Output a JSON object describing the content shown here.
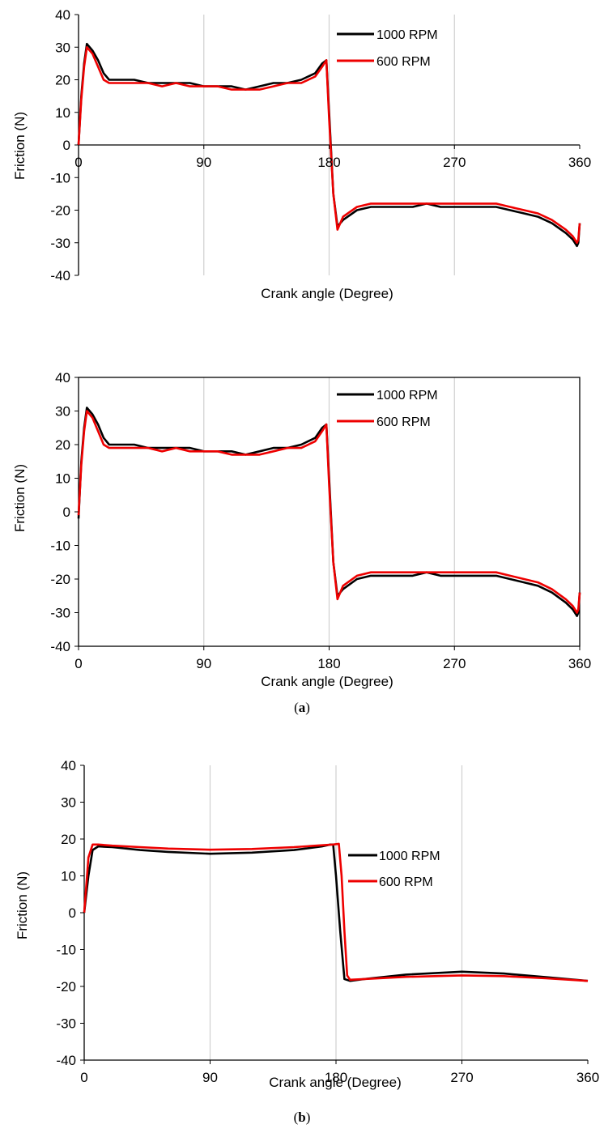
{
  "colors": {
    "series_1000": "#000000",
    "series_600": "#ee0000",
    "grid": "#d0d0d0"
  },
  "captions": {
    "a": "a",
    "b": "b"
  },
  "chart_data": [
    {
      "type": "line",
      "xlabel": "Crank angle (Degree)",
      "ylabel": "Friction (N)",
      "xlim": [
        0,
        360
      ],
      "ylim": [
        -40,
        40
      ],
      "xticks": [
        "0",
        "90",
        "180",
        "270",
        "360"
      ],
      "yticks": [
        "40",
        "30",
        "20",
        "10",
        "0",
        "-10",
        "-20",
        "-30",
        "-40"
      ],
      "x_axis_at": "y=0",
      "grid": "vertical",
      "legend": "top-right",
      "series": [
        {
          "name": "1000 RPM",
          "x": [
            0,
            2,
            4,
            6,
            10,
            14,
            18,
            22,
            30,
            40,
            50,
            60,
            70,
            80,
            90,
            100,
            110,
            120,
            130,
            140,
            150,
            160,
            170,
            175,
            178,
            180,
            183,
            186,
            190,
            200,
            210,
            220,
            230,
            240,
            250,
            260,
            270,
            280,
            290,
            300,
            310,
            320,
            330,
            340,
            350,
            355,
            358,
            359,
            360
          ],
          "y": [
            0,
            15,
            25,
            31,
            29,
            26,
            22,
            20,
            20,
            20,
            19,
            19,
            19,
            19,
            18,
            18,
            18,
            17,
            18,
            19,
            19,
            20,
            22,
            25,
            26,
            10,
            -15,
            -25,
            -23,
            -20,
            -19,
            -19,
            -19,
            -19,
            -18,
            -19,
            -19,
            -19,
            -19,
            -19,
            -20,
            -21,
            -22,
            -24,
            -27,
            -29,
            -31,
            -30,
            -24
          ]
        },
        {
          "name": "600 RPM",
          "x": [
            0,
            2,
            4,
            6,
            10,
            14,
            18,
            22,
            30,
            40,
            50,
            60,
            70,
            80,
            90,
            100,
            110,
            120,
            130,
            140,
            150,
            160,
            170,
            175,
            178,
            180,
            183,
            186,
            190,
            200,
            210,
            220,
            230,
            240,
            250,
            260,
            270,
            280,
            290,
            300,
            310,
            320,
            330,
            340,
            350,
            355,
            358,
            359,
            360
          ],
          "y": [
            0,
            14,
            24,
            30,
            28,
            24,
            20,
            19,
            19,
            19,
            19,
            18,
            19,
            18,
            18,
            18,
            17,
            17,
            17,
            18,
            19,
            19,
            21,
            24,
            26,
            8,
            -15,
            -26,
            -22,
            -19,
            -18,
            -18,
            -18,
            -18,
            -18,
            -18,
            -18,
            -18,
            -18,
            -18,
            -19,
            -20,
            -21,
            -23,
            -26,
            -28,
            -30,
            -29,
            -24
          ]
        }
      ]
    },
    {
      "type": "line",
      "xlabel": "Crank angle (Degree)",
      "ylabel": "Friction (N)",
      "xlim": [
        0,
        360
      ],
      "ylim": [
        -40,
        40
      ],
      "xticks": [
        "0",
        "90",
        "180",
        "270",
        "360"
      ],
      "yticks": [
        "40",
        "30",
        "20",
        "10",
        "0",
        "-10",
        "-20",
        "-30",
        "-40"
      ],
      "x_axis_at": "bottom",
      "grid": "vertical",
      "legend": "top-right",
      "series": [
        {
          "name": "1000 RPM",
          "x": [
            0,
            2,
            4,
            6,
            10,
            14,
            18,
            22,
            30,
            40,
            50,
            60,
            70,
            80,
            90,
            100,
            110,
            120,
            130,
            140,
            150,
            160,
            170,
            175,
            178,
            180,
            183,
            186,
            190,
            200,
            210,
            220,
            230,
            240,
            250,
            260,
            270,
            280,
            290,
            300,
            310,
            320,
            330,
            340,
            350,
            355,
            358,
            359,
            360
          ],
          "y": [
            -2,
            15,
            25,
            31,
            29,
            26,
            22,
            20,
            20,
            20,
            19,
            19,
            19,
            19,
            18,
            18,
            18,
            17,
            18,
            19,
            19,
            20,
            22,
            25,
            26,
            10,
            -15,
            -25,
            -23,
            -20,
            -19,
            -19,
            -19,
            -19,
            -18,
            -19,
            -19,
            -19,
            -19,
            -19,
            -20,
            -21,
            -22,
            -24,
            -27,
            -29,
            -31,
            -30,
            -24
          ]
        },
        {
          "name": "600 RPM",
          "x": [
            0,
            2,
            4,
            6,
            10,
            14,
            18,
            22,
            30,
            40,
            50,
            60,
            70,
            80,
            90,
            100,
            110,
            120,
            130,
            140,
            150,
            160,
            170,
            175,
            178,
            180,
            183,
            186,
            190,
            200,
            210,
            220,
            230,
            240,
            250,
            260,
            270,
            280,
            290,
            300,
            310,
            320,
            330,
            340,
            350,
            355,
            358,
            359,
            360
          ],
          "y": [
            -1,
            14,
            24,
            30,
            28,
            24,
            20,
            19,
            19,
            19,
            19,
            18,
            19,
            18,
            18,
            18,
            17,
            17,
            17,
            18,
            19,
            19,
            21,
            24,
            26,
            8,
            -15,
            -26,
            -22,
            -19,
            -18,
            -18,
            -18,
            -18,
            -18,
            -18,
            -18,
            -18,
            -18,
            -18,
            -19,
            -20,
            -21,
            -23,
            -26,
            -28,
            -30,
            -29,
            -24
          ]
        }
      ]
    },
    {
      "type": "line",
      "xlabel": "Crank angle (Degree)",
      "ylabel": "Friction  (N)",
      "xlim": [
        0,
        360
      ],
      "ylim": [
        -40,
        40
      ],
      "xticks": [
        "0",
        "90",
        "180",
        "270",
        "360"
      ],
      "yticks": [
        "40",
        "30",
        "20",
        "10",
        "0",
        "-10",
        "-20",
        "-30",
        "-40"
      ],
      "x_axis_at": "bottom",
      "grid": "vertical",
      "legend": "top-right",
      "series": [
        {
          "name": "1000 RPM",
          "x": [
            0,
            3,
            6,
            10,
            20,
            40,
            60,
            90,
            120,
            150,
            170,
            176,
            178,
            180,
            183,
            186,
            190,
            200,
            230,
            270,
            300,
            330,
            360
          ],
          "y": [
            0,
            10,
            17,
            18,
            17.8,
            17,
            16.5,
            16,
            16.3,
            17,
            18,
            18.5,
            18.5,
            10,
            -5,
            -18,
            -18.5,
            -18,
            -16.8,
            -16,
            -16.5,
            -17.5,
            -18.5
          ]
        },
        {
          "name": "600 RPM",
          "x": [
            0,
            3,
            6,
            10,
            20,
            40,
            60,
            90,
            120,
            150,
            170,
            178,
            182,
            184,
            186,
            188,
            190,
            200,
            230,
            270,
            300,
            330,
            360
          ],
          "y": [
            0,
            15,
            18.5,
            18.5,
            18.2,
            17.8,
            17.4,
            17.1,
            17.3,
            17.8,
            18.3,
            18.5,
            18.7,
            10,
            -5,
            -17,
            -18.2,
            -18,
            -17.4,
            -17,
            -17.2,
            -17.8,
            -18.5
          ]
        }
      ]
    }
  ]
}
